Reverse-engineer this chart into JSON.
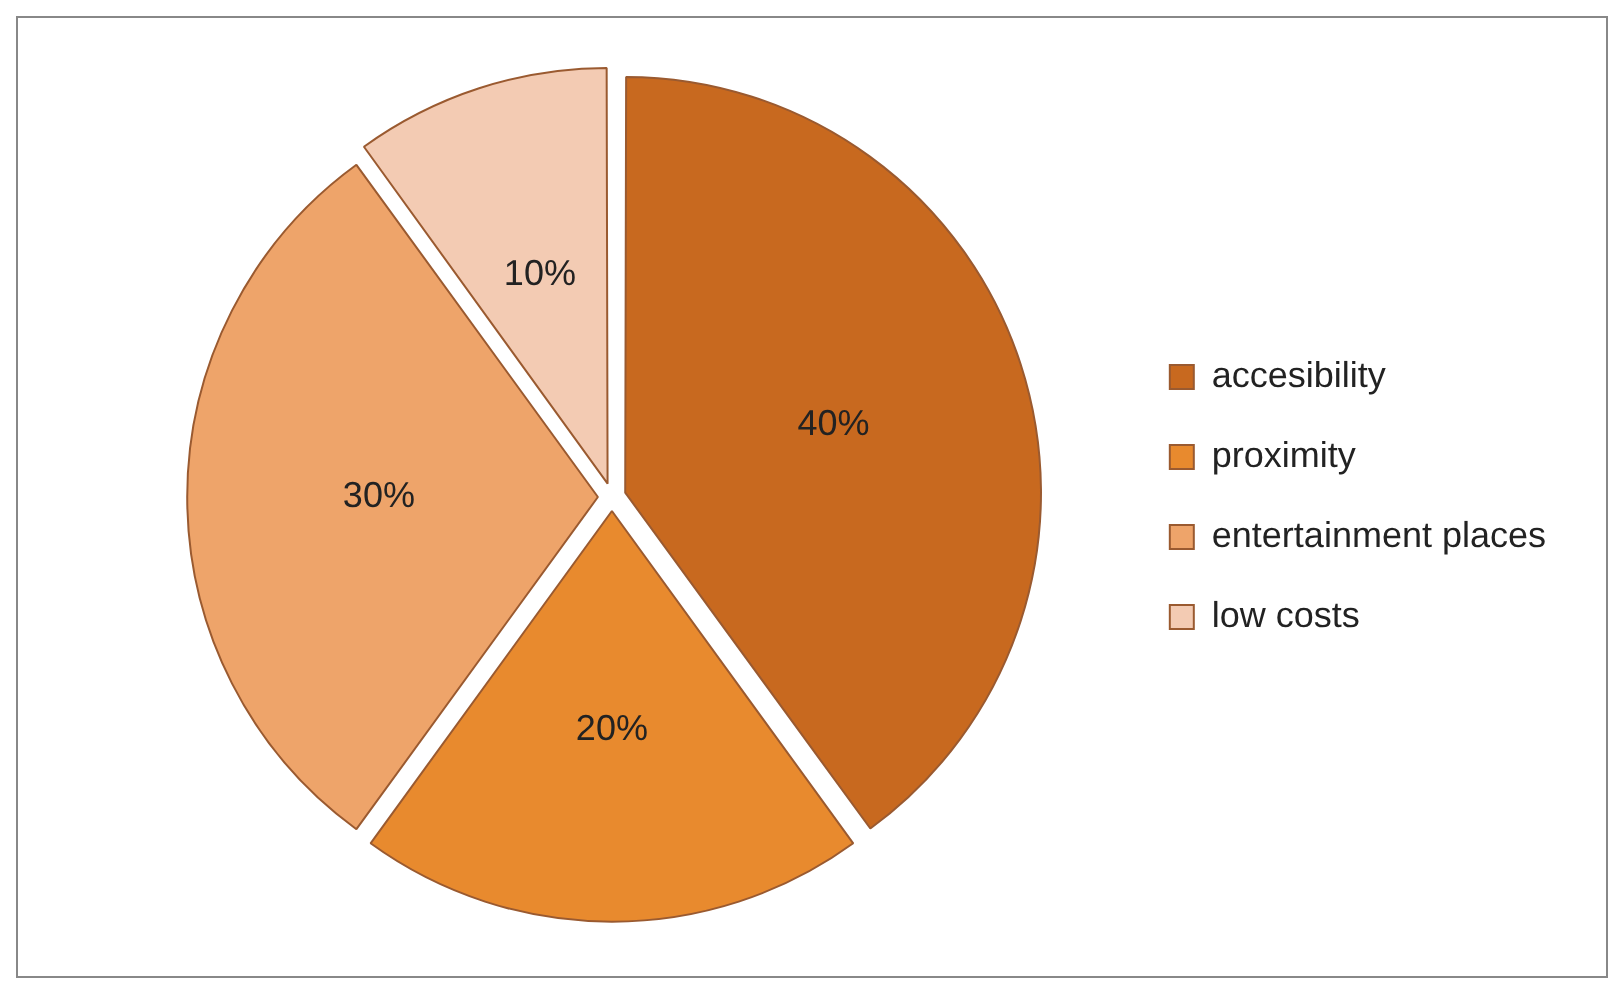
{
  "chart_data": {
    "type": "pie",
    "categories": [
      "accesibility",
      "proximity",
      "entertainment places",
      "low costs"
    ],
    "values": [
      40,
      20,
      30,
      10
    ],
    "value_labels": [
      "40%",
      "20%",
      "30%",
      "10%"
    ],
    "colors": [
      "#c8691f",
      "#e88a2e",
      "#eea46a",
      "#f3cbb3"
    ],
    "legend": "right"
  }
}
